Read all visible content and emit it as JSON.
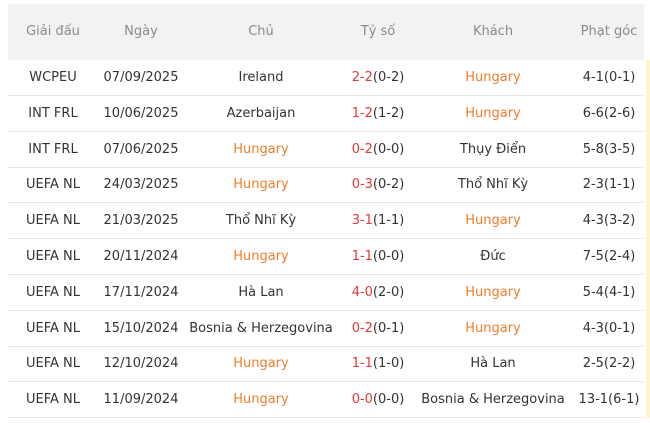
{
  "table": {
    "headers": [
      "Giải đấu",
      "Ngày",
      "Chủ",
      "Tỷ số",
      "Khách",
      "Phạt góc"
    ],
    "highlight_color": "#f07c2a",
    "rows": [
      {
        "league": "WCPEU",
        "date": "07/09/2025",
        "home": "Ireland",
        "score": "2-2",
        "half": "(0-2)",
        "away": "Hungary",
        "corners": "4-1(0-1)",
        "highlight": "away"
      },
      {
        "league": "INT FRL",
        "date": "10/06/2025",
        "home": "Azerbaijan",
        "score": "1-2",
        "half": "(1-2)",
        "away": "Hungary",
        "corners": "6-6(2-6)",
        "highlight": "away"
      },
      {
        "league": "INT FRL",
        "date": "07/06/2025",
        "home": "Hungary",
        "score": "0-2",
        "half": "(0-0)",
        "away": "Thụy Điển",
        "corners": "5-8(3-5)",
        "highlight": "home"
      },
      {
        "league": "UEFA NL",
        "date": "24/03/2025",
        "home": "Hungary",
        "score": "0-3",
        "half": "(0-2)",
        "away": "Thổ Nhĩ Kỳ",
        "corners": "2-3(1-1)",
        "highlight": "home"
      },
      {
        "league": "UEFA NL",
        "date": "21/03/2025",
        "home": "Thổ Nhĩ Kỳ",
        "score": "3-1",
        "half": "(1-1)",
        "away": "Hungary",
        "corners": "4-3(3-2)",
        "highlight": "away"
      },
      {
        "league": "UEFA NL",
        "date": "20/11/2024",
        "home": "Hungary",
        "score": "1-1",
        "half": "(0-0)",
        "away": "Đức",
        "corners": "7-5(2-4)",
        "highlight": "home"
      },
      {
        "league": "UEFA NL",
        "date": "17/11/2024",
        "home": "Hà Lan",
        "score": "4-0",
        "half": "(2-0)",
        "away": "Hungary",
        "corners": "5-4(4-1)",
        "highlight": "away"
      },
      {
        "league": "UEFA NL",
        "date": "15/10/2024",
        "home": "Bosnia & Herzegovina",
        "score": "0-2",
        "half": "(0-1)",
        "away": "Hungary",
        "corners": "4-3(0-1)",
        "highlight": "away"
      },
      {
        "league": "UEFA NL",
        "date": "12/10/2024",
        "home": "Hungary",
        "score": "1-1",
        "half": "(1-0)",
        "away": "Hà Lan",
        "corners": "2-5(2-2)",
        "highlight": "home"
      },
      {
        "league": "UEFA NL",
        "date": "11/09/2024",
        "home": "Hungary",
        "score": "0-0",
        "half": "(0-0)",
        "away": "Bosnia & Herzegovina",
        "corners": "13-1(6-1)",
        "highlight": "home"
      }
    ]
  }
}
